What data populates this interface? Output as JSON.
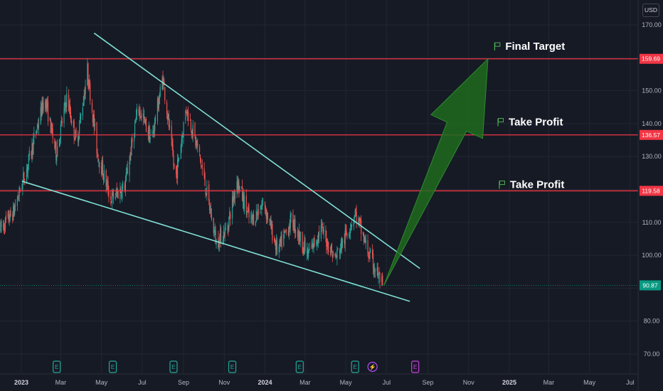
{
  "currency_label": "USD",
  "colors": {
    "background": "#161a25",
    "grid": "#222631",
    "bull": "#26a69a",
    "bear": "#ef5350",
    "trendline": "#7fdfd4",
    "resistance": "#f23645",
    "arrow": "#1f6b1f",
    "flag": "#4caf50",
    "last_price": "#089981"
  },
  "chart_data": {
    "type": "candlestick",
    "title": "",
    "y_ticks": [
      "170.00",
      "160.00",
      "150.00",
      "140.00",
      "130.00",
      "120.00",
      "110.00",
      "100.00",
      "90.00",
      "80.00",
      "70.00"
    ],
    "ylim": [
      66,
      175
    ],
    "x_ticks": [
      {
        "label": "2023",
        "date": "2023-01-01",
        "bold": true
      },
      {
        "label": "Mar",
        "date": "2023-03-01"
      },
      {
        "label": "May",
        "date": "2023-05-01"
      },
      {
        "label": "Jul",
        "date": "2023-07-01"
      },
      {
        "label": "Sep",
        "date": "2023-09-01"
      },
      {
        "label": "Nov",
        "date": "2023-11-01"
      },
      {
        "label": "2024",
        "date": "2024-01-01",
        "bold": true
      },
      {
        "label": "Mar",
        "date": "2024-03-01"
      },
      {
        "label": "May",
        "date": "2024-05-01"
      },
      {
        "label": "Jul",
        "date": "2024-07-01"
      },
      {
        "label": "Sep",
        "date": "2024-09-01"
      },
      {
        "label": "Nov",
        "date": "2024-11-01"
      },
      {
        "label": "2025",
        "date": "2025-01-01",
        "bold": true
      },
      {
        "label": "Mar",
        "date": "2025-03-01"
      },
      {
        "label": "May",
        "date": "2025-05-01"
      },
      {
        "label": "Jul",
        "date": "2025-07-01"
      }
    ],
    "price_path": [
      {
        "date": "2022-12-01",
        "price": 108
      },
      {
        "date": "2022-12-20",
        "price": 113
      },
      {
        "date": "2023-01-10",
        "price": 127
      },
      {
        "date": "2023-02-05",
        "price": 148
      },
      {
        "date": "2023-02-22",
        "price": 131
      },
      {
        "date": "2023-03-10",
        "price": 148
      },
      {
        "date": "2023-03-25",
        "price": 134
      },
      {
        "date": "2023-04-10",
        "price": 156
      },
      {
        "date": "2023-04-25",
        "price": 131
      },
      {
        "date": "2023-05-15",
        "price": 117
      },
      {
        "date": "2023-06-05",
        "price": 121
      },
      {
        "date": "2023-06-25",
        "price": 145
      },
      {
        "date": "2023-07-15",
        "price": 135
      },
      {
        "date": "2023-08-01",
        "price": 154
      },
      {
        "date": "2023-08-20",
        "price": 123
      },
      {
        "date": "2023-09-05",
        "price": 145
      },
      {
        "date": "2023-09-25",
        "price": 130
      },
      {
        "date": "2023-10-20",
        "price": 104
      },
      {
        "date": "2023-11-05",
        "price": 108
      },
      {
        "date": "2023-11-20",
        "price": 123
      },
      {
        "date": "2023-12-10",
        "price": 110
      },
      {
        "date": "2023-12-30",
        "price": 116
      },
      {
        "date": "2024-01-20",
        "price": 101
      },
      {
        "date": "2024-02-10",
        "price": 111
      },
      {
        "date": "2024-03-05",
        "price": 100
      },
      {
        "date": "2024-03-25",
        "price": 108
      },
      {
        "date": "2024-04-15",
        "price": 99
      },
      {
        "date": "2024-05-01",
        "price": 106
      },
      {
        "date": "2024-05-15",
        "price": 113
      },
      {
        "date": "2024-06-05",
        "price": 100
      },
      {
        "date": "2024-06-25",
        "price": 90.87
      }
    ],
    "trendlines": [
      {
        "name": "upper",
        "from": {
          "date": "2023-04-20",
          "price": 167.5
        },
        "to": {
          "date": "2024-08-20",
          "price": 96
        }
      },
      {
        "name": "lower",
        "from": {
          "date": "2023-01-02",
          "price": 122.5
        },
        "to": {
          "date": "2024-08-05",
          "price": 86
        }
      }
    ],
    "levels": [
      {
        "value": "159.69",
        "price": 159.69
      },
      {
        "value": "136.57",
        "price": 136.57
      },
      {
        "value": "119.58",
        "price": 119.58
      }
    ],
    "last_price": {
      "value": "90.87",
      "price": 90.87
    },
    "arrow": {
      "from": {
        "date": "2024-06-27",
        "price": 90.87
      },
      "to": {
        "date": "2024-11-30",
        "price": 159.69
      }
    },
    "annotations": [
      {
        "text": "Final Target",
        "date": "2024-12-10",
        "price": 163.5
      },
      {
        "text": "Take Profit",
        "date": "2024-12-15",
        "price": 140.5
      },
      {
        "text": "Take Profit",
        "date": "2024-12-17",
        "price": 121.5
      }
    ],
    "events": [
      {
        "type": "earnings",
        "label": "E",
        "date": "2023-02-23"
      },
      {
        "type": "earnings",
        "label": "E",
        "date": "2023-05-18"
      },
      {
        "type": "earnings",
        "label": "E",
        "date": "2023-08-17"
      },
      {
        "type": "earnings",
        "label": "E",
        "date": "2023-11-13"
      },
      {
        "type": "earnings",
        "label": "E",
        "date": "2024-02-22"
      },
      {
        "type": "earnings",
        "label": "E",
        "date": "2024-05-15"
      },
      {
        "type": "dividend",
        "label": "⚡",
        "date": "2024-06-10"
      },
      {
        "type": "earnings_upcoming",
        "label": "E",
        "date": "2024-08-13"
      }
    ]
  }
}
